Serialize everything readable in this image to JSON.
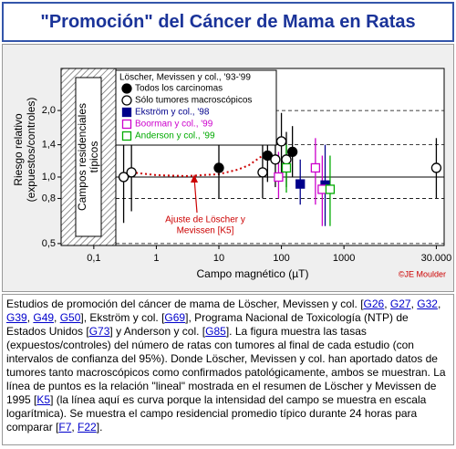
{
  "header": {
    "title": "\"Promoción\" del Cáncer de Mama en Ratas"
  },
  "chart_data": {
    "type": "scatter",
    "xlabel": "Campo magnético (µT)",
    "ylabel": [
      "Riesgo relativo",
      "(expuestos/controles)"
    ],
    "xscale": "log",
    "yscale": "log",
    "xlim": [
      0.03,
      40000
    ],
    "ylim": [
      0.49,
      3.1
    ],
    "xticks": [
      {
        "value": 0.1,
        "label": "0,1"
      },
      1,
      10,
      100,
      1000,
      {
        "value": 30000,
        "label": "30.000"
      }
    ],
    "yticks": [
      {
        "value": 0.5,
        "label": "0,5"
      },
      {
        "value": 0.8,
        "label": "0,8"
      },
      {
        "value": 1,
        "label": "1,0"
      },
      {
        "value": 1.4,
        "label": "1,4"
      },
      {
        "value": 2,
        "label": "2,0"
      }
    ],
    "grid": true,
    "hline": 1,
    "band_label": [
      "Campos residenciales",
      "típicos"
    ],
    "legend_title": "Löscher, Mevissen y col., '93-'99",
    "series": [
      {
        "name": "Todos los carcinomas",
        "marker": "circle",
        "filled": true,
        "color": "#000000",
        "x": [
          10,
          60,
          150
        ],
        "values": [
          1.1,
          1.25,
          1.3
        ],
        "low": [
          0.8,
          0.95,
          1.0
        ],
        "high": [
          1.4,
          1.6,
          1.7
        ]
      },
      {
        "name": "Sólo tumores macroscópicos",
        "marker": "circle",
        "filled": false,
        "color": "#000000",
        "x": [
          0.3,
          0.4,
          50,
          80,
          100,
          120,
          30000
        ],
        "values": [
          1.0,
          1.05,
          1.05,
          1.2,
          1.45,
          1.2,
          1.1
        ],
        "low": [
          0.62,
          0.7,
          0.8,
          0.9,
          1.05,
          0.9,
          0.8
        ],
        "high": [
          1.5,
          1.5,
          1.4,
          1.6,
          1.95,
          1.6,
          1.5
        ]
      },
      {
        "name": "Ekström y col., '98",
        "marker": "square",
        "filled": true,
        "color": "#00008b",
        "x": [
          200,
          500
        ],
        "values": [
          0.93,
          0.92
        ],
        "low": [
          0.75,
          0.6
        ],
        "high": [
          1.2,
          1.4
        ]
      },
      {
        "name": "Boorman y col., '99",
        "marker": "square",
        "filled": false,
        "color": "#cc00cc",
        "x": [
          90,
          350,
          450
        ],
        "values": [
          1.0,
          1.1,
          0.88
        ],
        "low": [
          0.8,
          0.75,
          0.6
        ],
        "high": [
          1.3,
          1.5,
          1.25
        ]
      },
      {
        "name": "Anderson y col., '99",
        "marker": "square",
        "filled": false,
        "color": "#00aa00",
        "x": [
          120,
          600
        ],
        "values": [
          1.1,
          0.88
        ],
        "low": [
          0.85,
          0.6
        ],
        "high": [
          1.4,
          1.25
        ]
      }
    ],
    "fit": {
      "label": [
        "Ajuste de Löscher y",
        "Mevissen [K5]"
      ],
      "color": "#cc0000",
      "x": [
        0.4,
        1,
        3,
        10,
        20,
        30,
        50
      ],
      "values": [
        1.05,
        1.02,
        1.01,
        1.03,
        1.08,
        1.13,
        1.25
      ]
    },
    "credit": "©JE Moulder"
  },
  "caption": [
    "Estudios de promoción del cáncer de mama de Löscher, Mevissen y col. [",
    {
      "link": "G26"
    },
    ", ",
    {
      "link": "G27"
    },
    ", ",
    {
      "link": "G32"
    },
    ", ",
    {
      "link": "G39"
    },
    ", ",
    {
      "link": "G49"
    },
    ", ",
    {
      "link": "G50"
    },
    "], Ekström y col. [",
    {
      "link": "G69"
    },
    "], Programa Nacional de Toxicología (NTP) de Estados Unidos [",
    {
      "link": "G73"
    },
    "] y Anderson y col. [",
    {
      "link": "G85"
    },
    "]. La figura muestra las tasas (expuestos/controles) del número de ratas con tumores al final de cada estudio (con intervalos de confianza del 95%). Donde Löscher, Mevissen y col. han aportado datos de tumores tanto macroscópicos como confirmados patológicamente, ambos se muestran. La línea de puntos es la relación \"lineal\" mostrada en el resumen de Löscher y Mevissen de 1995 [",
    {
      "link": "K5"
    },
    "] (la línea aquí es curva porque la intensidad del campo se muestra en escala logarítmica). Se muestra el campo residencial promedio típico durante 24 horas para comparar [",
    {
      "link": "F7"
    },
    ", ",
    {
      "link": "F22"
    },
    "]."
  ]
}
